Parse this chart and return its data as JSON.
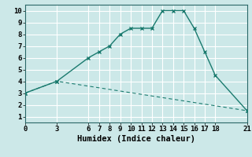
{
  "line1_x": [
    0,
    3,
    6,
    7,
    8,
    9,
    10,
    11,
    12,
    13,
    14,
    15,
    16,
    17,
    18,
    21
  ],
  "line1_y": [
    3,
    4,
    6,
    6.5,
    7,
    8,
    8.5,
    8.5,
    8.5,
    10,
    10,
    10,
    8.5,
    6.5,
    4.5,
    1.5
  ],
  "line2_x": [
    0,
    3,
    21
  ],
  "line2_y": [
    3,
    4,
    1.5
  ],
  "line_color": "#1a7a6e",
  "bg_color": "#cce8e8",
  "grid_color": "#ffffff",
  "xlabel": "Humidex (Indice chaleur)",
  "xlim": [
    0,
    21
  ],
  "ylim": [
    1,
    10
  ],
  "xticks": [
    0,
    3,
    6,
    7,
    8,
    9,
    10,
    11,
    12,
    13,
    14,
    15,
    16,
    17,
    18,
    21
  ],
  "yticks": [
    1,
    2,
    3,
    4,
    5,
    6,
    7,
    8,
    9,
    10
  ],
  "tick_fontsize": 6.5,
  "label_fontsize": 7.5
}
